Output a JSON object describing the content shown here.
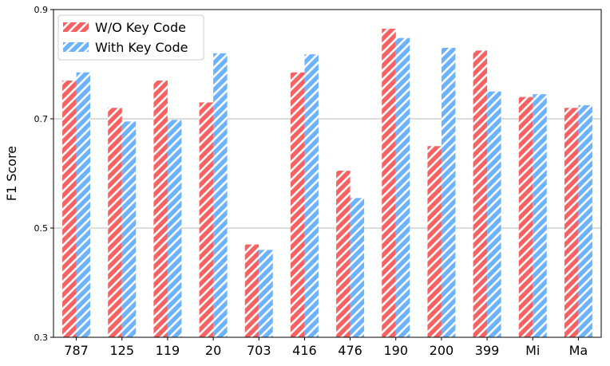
{
  "chart_data": {
    "type": "bar",
    "title": "",
    "xlabel": "",
    "ylabel": "F1 Score",
    "ylim": [
      0.3,
      0.9
    ],
    "yticks": [
      0.3,
      0.5,
      0.7,
      0.9
    ],
    "ytick_labels": [
      "0.3",
      "0.5",
      "0.7",
      "0.9"
    ],
    "grid": "horizontal",
    "legend_position": "top-left",
    "categories": [
      "787",
      "125",
      "119",
      "20",
      "703",
      "416",
      "476",
      "190",
      "200",
      "399",
      "Mi",
      "Ma"
    ],
    "series": [
      {
        "name": "W/O Key Code",
        "color": "#f86161",
        "pattern": "diagonal-hatch",
        "values": [
          0.77,
          0.72,
          0.77,
          0.73,
          0.47,
          0.785,
          0.605,
          0.865,
          0.65,
          0.825,
          0.74,
          0.72
        ]
      },
      {
        "name": "With Key Code",
        "color": "#6bb3ff",
        "pattern": "diagonal-hatch",
        "values": [
          0.785,
          0.695,
          0.698,
          0.82,
          0.46,
          0.818,
          0.555,
          0.848,
          0.83,
          0.75,
          0.745,
          0.725
        ]
      }
    ]
  }
}
